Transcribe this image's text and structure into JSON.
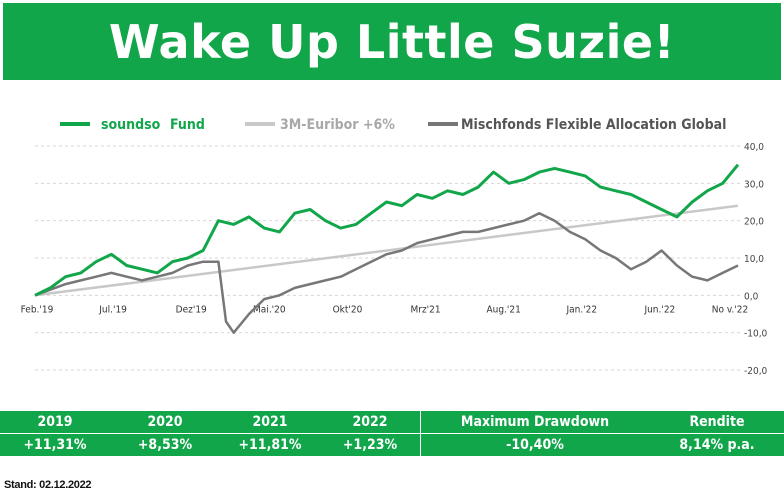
{
  "title": "Wake Up Little Suzie!",
  "colors": {
    "green": "#12a64b",
    "light_grey": "#c8c8c8",
    "dark_grey": "#777777"
  },
  "legend": [
    {
      "name_a": "soundso",
      "name_b": "Fund"
    },
    {
      "name": "3M-Euribor +6%"
    },
    {
      "name": "Mischfonds Flexible Allocation Global"
    }
  ],
  "chart_data": {
    "type": "line",
    "x_ticks": [
      "Feb.'19",
      "Jul.'19",
      "Dez'19",
      "Mai.'20",
      "Okt'20",
      "Mrz'21",
      "Aug.'21",
      "Jan.'22",
      "Jun.'22",
      "No v.'22"
    ],
    "y_ticks": [
      "40,0",
      "30,0",
      "20,0",
      "10,0",
      "0,0",
      "-10,0",
      "-20,0"
    ],
    "y_tick_values": [
      40,
      30,
      20,
      10,
      0,
      -10,
      -20
    ],
    "ylim": [
      -20,
      40
    ],
    "xlim": [
      0,
      46
    ],
    "grid": true,
    "legend_position": "top",
    "series": [
      {
        "name": "soundso Fund",
        "color": "#12a64b",
        "x": [
          0,
          1,
          2,
          3,
          4,
          5,
          6,
          7,
          8,
          9,
          10,
          11,
          12,
          13,
          14,
          15,
          16,
          17,
          18,
          19,
          20,
          21,
          22,
          23,
          24,
          25,
          26,
          27,
          28,
          29,
          30,
          31,
          32,
          33,
          34,
          35,
          36,
          37,
          38,
          39,
          40,
          41,
          42,
          43,
          44,
          45,
          46
        ],
        "y": [
          0,
          2,
          5,
          6,
          9,
          11,
          8,
          7,
          6,
          9,
          10,
          12,
          20,
          19,
          21,
          18,
          17,
          22,
          23,
          20,
          18,
          19,
          22,
          25,
          24,
          27,
          26,
          28,
          27,
          29,
          33,
          30,
          31,
          33,
          34,
          33,
          32,
          29,
          28,
          27,
          25,
          23,
          21,
          25,
          28,
          30,
          35
        ]
      },
      {
        "name": "3M-Euribor +6%",
        "color": "#c8c8c8",
        "x": [
          0,
          46
        ],
        "y": [
          0,
          24
        ]
      },
      {
        "name": "Mischfonds Flexible Allocation Global",
        "color": "#777777",
        "x": [
          0,
          1,
          2,
          3,
          4,
          5,
          6,
          7,
          8,
          9,
          10,
          11,
          12,
          12.5,
          13,
          14,
          15,
          16,
          17,
          18,
          19,
          20,
          21,
          22,
          23,
          24,
          25,
          26,
          27,
          28,
          29,
          30,
          31,
          32,
          33,
          34,
          35,
          36,
          37,
          38,
          39,
          40,
          41,
          42,
          43,
          44,
          45,
          46
        ],
        "y": [
          0,
          1.5,
          3,
          4,
          5,
          6,
          5,
          4,
          5,
          6,
          8,
          9,
          9,
          -7,
          -10,
          -5,
          -1,
          0,
          2,
          3,
          4,
          5,
          7,
          9,
          11,
          12,
          14,
          15,
          16,
          17,
          17,
          18,
          19,
          20,
          22,
          20,
          17,
          15,
          12,
          10,
          7,
          9,
          12,
          8,
          5,
          4,
          6,
          8
        ]
      }
    ]
  },
  "table": {
    "headers": [
      "2019",
      "2020",
      "2021",
      "2022",
      "Maximum Drawdown",
      "Rendite"
    ],
    "values": [
      "+11,31%",
      "+8,53%",
      "+11,81%",
      "+1,23%",
      "-10,40%",
      "8,14% p.a."
    ]
  },
  "footnote": "Stand: 02.12.2022"
}
